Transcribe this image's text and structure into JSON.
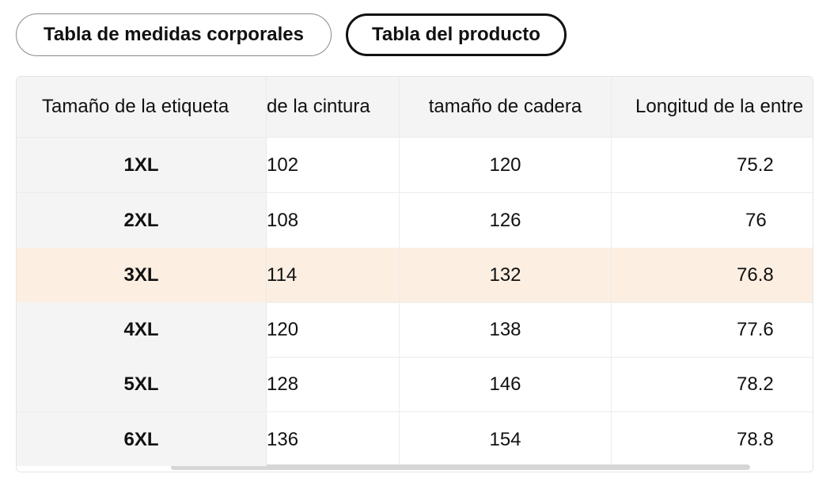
{
  "tabs": {
    "body_chart": "Tabla de medidas corporales",
    "product_chart": "Tabla del producto"
  },
  "table": {
    "headers": {
      "size_label": "Tamaño de la etiqueta",
      "waist": "de la cintura",
      "hip": "tamaño de cadera",
      "inseam": "Longitud de la entre"
    },
    "rows": [
      {
        "size": "1XL",
        "waist": "102",
        "hip": "120",
        "inseam": "75.2"
      },
      {
        "size": "2XL",
        "waist": "108",
        "hip": "126",
        "inseam": "76"
      },
      {
        "size": "3XL",
        "waist": "114",
        "hip": "132",
        "inseam": "76.8"
      },
      {
        "size": "4XL",
        "waist": "120",
        "hip": "138",
        "inseam": "77.6"
      },
      {
        "size": "5XL",
        "waist": "128",
        "hip": "146",
        "inseam": "78.2"
      },
      {
        "size": "6XL",
        "waist": "136",
        "hip": "154",
        "inseam": "78.8"
      }
    ],
    "highlighted_row_index": 2
  },
  "colors": {
    "highlight": "#fcefe2",
    "header_bg": "#f4f4f4",
    "active_tab_border": "#111111"
  }
}
